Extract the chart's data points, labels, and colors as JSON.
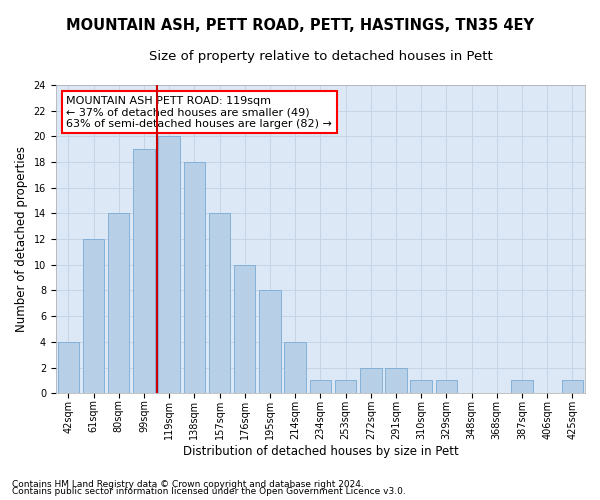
{
  "title": "MOUNTAIN ASH, PETT ROAD, PETT, HASTINGS, TN35 4EY",
  "subtitle": "Size of property relative to detached houses in Pett",
  "xlabel": "Distribution of detached houses by size in Pett",
  "ylabel": "Number of detached properties",
  "footnote1": "Contains HM Land Registry data © Crown copyright and database right 2024.",
  "footnote2": "Contains public sector information licensed under the Open Government Licence v3.0.",
  "annotation_line1": "MOUNTAIN ASH PETT ROAD: 119sqm",
  "annotation_line2": "← 37% of detached houses are smaller (49)",
  "annotation_line3": "63% of semi-detached houses are larger (82) →",
  "bar_labels": [
    "42sqm",
    "61sqm",
    "80sqm",
    "99sqm",
    "119sqm",
    "138sqm",
    "157sqm",
    "176sqm",
    "195sqm",
    "214sqm",
    "234sqm",
    "253sqm",
    "272sqm",
    "291sqm",
    "310sqm",
    "329sqm",
    "348sqm",
    "368sqm",
    "387sqm",
    "406sqm",
    "425sqm"
  ],
  "bar_values": [
    4,
    12,
    14,
    19,
    20,
    18,
    14,
    10,
    8,
    4,
    1,
    1,
    2,
    2,
    1,
    1,
    0,
    0,
    1,
    0,
    1
  ],
  "bar_color": "#b8cfe8",
  "bar_edge_color": "#7aaad4",
  "vline_x": 4,
  "vline_color": "#cc0000",
  "ylim": [
    0,
    24
  ],
  "yticks": [
    0,
    2,
    4,
    6,
    8,
    10,
    12,
    14,
    16,
    18,
    20,
    22,
    24
  ],
  "grid_color": "#c5d5e8",
  "bg_color": "#dce8f5",
  "title_fontsize": 10.5,
  "subtitle_fontsize": 9.5,
  "annotation_fontsize": 8,
  "axis_label_fontsize": 8.5,
  "ylabel_fontsize": 8.5,
  "tick_fontsize": 7,
  "footnote_fontsize": 6.5
}
